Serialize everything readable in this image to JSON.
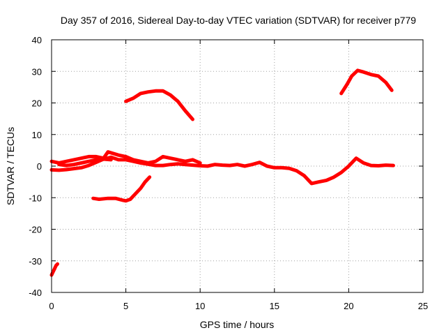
{
  "chart_data": {
    "type": "line",
    "title": "Day 357 of 2016, Sidereal Day-to-day VTEC variation (SDTVAR) for receiver p779",
    "xlabel": "GPS time / hours",
    "ylabel": "SDTVAR / TECUs",
    "xlim": [
      0,
      25
    ],
    "ylim": [
      -40,
      40
    ],
    "xticks": [
      0,
      5,
      10,
      15,
      20,
      25
    ],
    "yticks": [
      -40,
      -30,
      -20,
      -10,
      0,
      10,
      20,
      30,
      40
    ],
    "grid": true,
    "color": "#ff0000",
    "series": [
      {
        "name": "band-a",
        "points": [
          [
            0.0,
            -34.5
          ],
          [
            0.1,
            -33.5
          ],
          [
            0.2,
            -32.5
          ],
          [
            0.3,
            -31.5
          ],
          [
            0.4,
            -31.0
          ]
        ]
      },
      {
        "name": "band-b",
        "points": [
          [
            0.0,
            -1.2
          ],
          [
            0.5,
            -1.3
          ],
          [
            1.0,
            -1.1
          ],
          [
            1.5,
            -0.8
          ],
          [
            2.0,
            -0.5
          ],
          [
            2.5,
            0.2
          ],
          [
            3.0,
            1.2
          ],
          [
            3.5,
            2.2
          ],
          [
            4.0,
            2.8
          ],
          [
            4.5,
            2.0
          ],
          [
            5.0,
            2.0
          ],
          [
            5.5,
            1.5
          ],
          [
            6.0,
            1.0
          ],
          [
            6.5,
            0.6
          ],
          [
            7.0,
            0.2
          ],
          [
            7.5,
            0.2
          ],
          [
            8.0,
            0.5
          ],
          [
            8.5,
            0.7
          ],
          [
            9.0,
            0.5
          ],
          [
            9.5,
            0.3
          ],
          [
            10.0,
            0.1
          ],
          [
            10.5,
            0.0
          ],
          [
            11.0,
            0.5
          ],
          [
            11.5,
            0.3
          ],
          [
            12.0,
            0.2
          ],
          [
            12.5,
            0.5
          ],
          [
            13.0,
            0.0
          ],
          [
            13.5,
            0.5
          ],
          [
            14.0,
            1.2
          ],
          [
            14.5,
            0.0
          ],
          [
            15.0,
            -0.5
          ],
          [
            15.5,
            -0.5
          ],
          [
            16.0,
            -0.7
          ],
          [
            16.5,
            -1.5
          ],
          [
            17.0,
            -3.0
          ],
          [
            17.5,
            -5.5
          ],
          [
            18.0,
            -5.0
          ],
          [
            18.5,
            -4.5
          ],
          [
            19.0,
            -3.5
          ],
          [
            19.5,
            -2.0
          ],
          [
            20.0,
            0.0
          ],
          [
            20.5,
            2.5
          ],
          [
            21.0,
            1.0
          ],
          [
            21.5,
            0.2
          ],
          [
            22.0,
            0.1
          ],
          [
            22.5,
            0.3
          ],
          [
            23.0,
            0.2
          ]
        ]
      },
      {
        "name": "band-c",
        "points": [
          [
            0.0,
            1.5
          ],
          [
            0.5,
            1.0
          ],
          [
            1.0,
            1.5
          ],
          [
            1.5,
            2.0
          ],
          [
            2.0,
            2.5
          ],
          [
            2.5,
            3.0
          ],
          [
            3.0,
            3.0
          ],
          [
            3.5,
            2.5
          ],
          [
            3.8,
            4.5
          ],
          [
            4.5,
            3.5
          ],
          [
            5.0,
            3.0
          ],
          [
            5.5,
            2.0
          ],
          [
            6.0,
            1.5
          ],
          [
            6.5,
            1.0
          ],
          [
            7.0,
            1.5
          ],
          [
            7.5,
            3.0
          ],
          [
            8.0,
            2.5
          ],
          [
            8.5,
            2.0
          ],
          [
            9.0,
            1.5
          ],
          [
            9.5,
            2.0
          ],
          [
            10.0,
            1.0
          ]
        ]
      },
      {
        "name": "band-d",
        "points": [
          [
            0.5,
            0.5
          ],
          [
            1.0,
            0.2
          ],
          [
            1.5,
            0.5
          ],
          [
            2.0,
            1.0
          ],
          [
            2.5,
            1.5
          ],
          [
            3.0,
            2.0
          ],
          [
            3.5,
            2.2
          ],
          [
            4.0,
            2.0
          ]
        ]
      },
      {
        "name": "band-e",
        "points": [
          [
            2.8,
            -10.2
          ],
          [
            3.2,
            -10.5
          ],
          [
            3.8,
            -10.2
          ],
          [
            4.3,
            -10.2
          ],
          [
            4.8,
            -10.8
          ],
          [
            5.0,
            -11.0
          ],
          [
            5.3,
            -10.5
          ],
          [
            5.6,
            -9.0
          ],
          [
            6.0,
            -7.0
          ],
          [
            6.3,
            -5.0
          ],
          [
            6.6,
            -3.5
          ]
        ]
      },
      {
        "name": "band-f",
        "points": [
          [
            5.0,
            20.5
          ],
          [
            5.5,
            21.5
          ],
          [
            6.0,
            23.0
          ],
          [
            6.5,
            23.5
          ],
          [
            7.0,
            23.8
          ],
          [
            7.5,
            23.8
          ],
          [
            8.0,
            22.5
          ],
          [
            8.5,
            20.5
          ],
          [
            9.0,
            17.5
          ],
          [
            9.5,
            14.8
          ]
        ]
      },
      {
        "name": "band-g",
        "points": [
          [
            19.5,
            23.0
          ],
          [
            19.9,
            26.0
          ],
          [
            20.2,
            28.5
          ],
          [
            20.6,
            30.3
          ],
          [
            21.0,
            29.8
          ],
          [
            21.5,
            29.0
          ],
          [
            22.0,
            28.5
          ],
          [
            22.5,
            26.5
          ],
          [
            22.9,
            24.0
          ]
        ]
      }
    ]
  }
}
